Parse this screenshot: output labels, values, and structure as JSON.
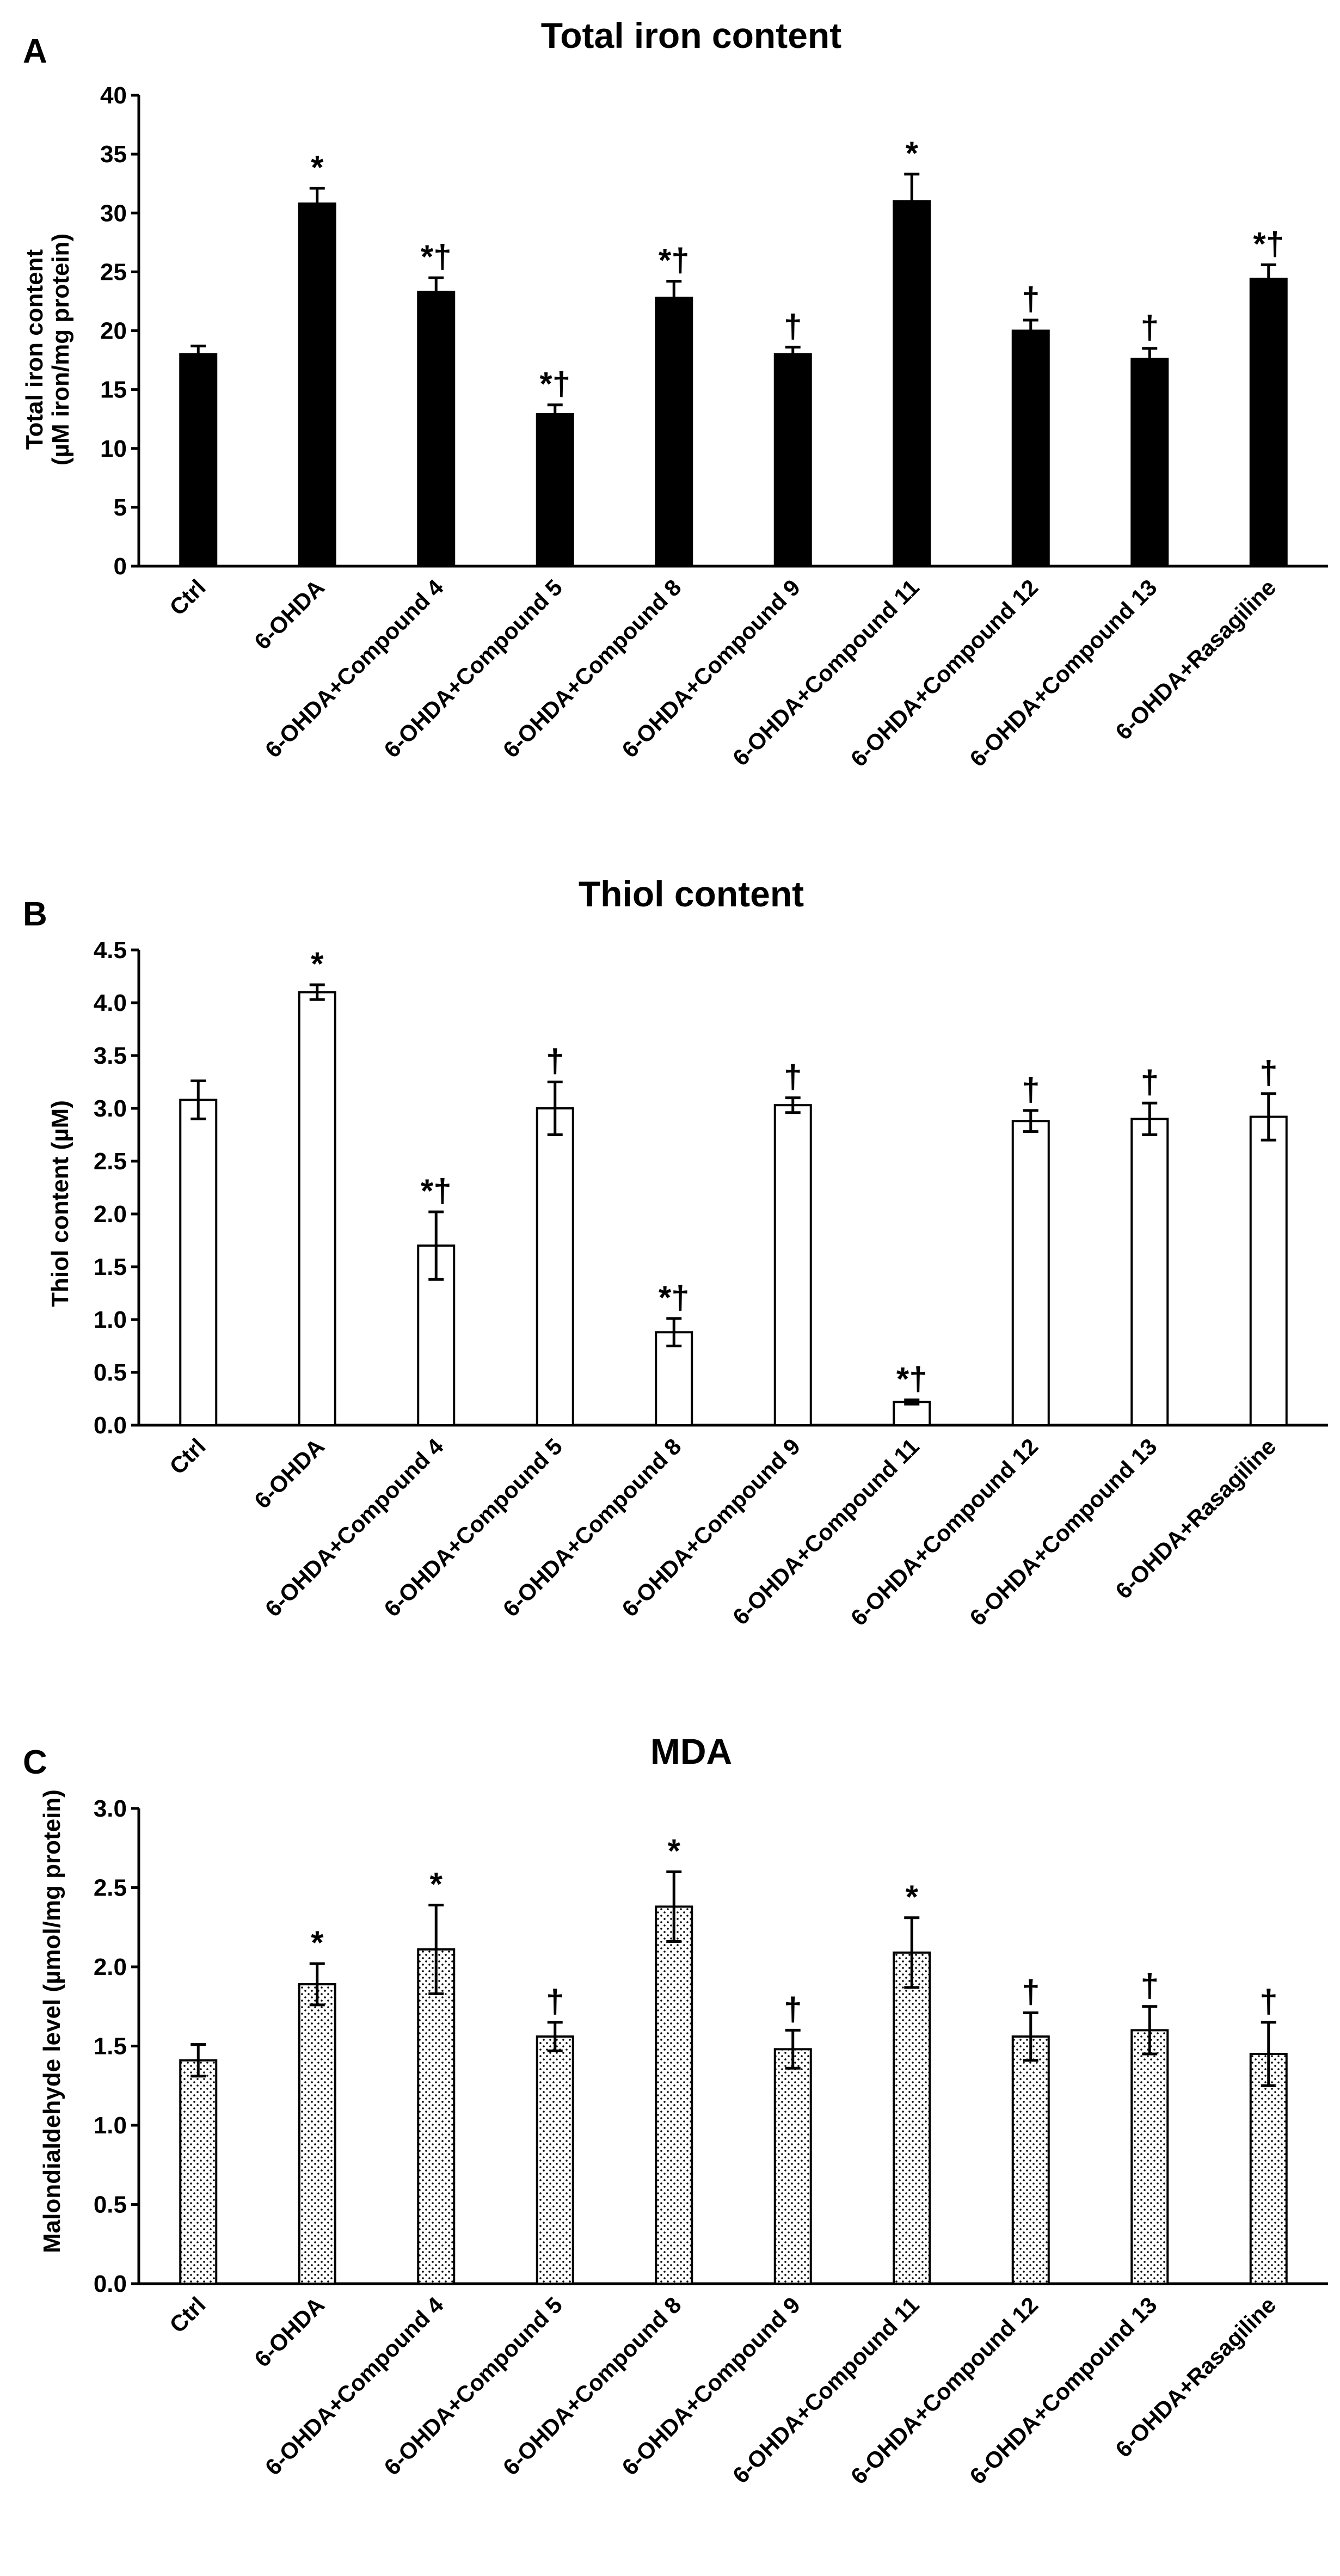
{
  "chart_data": [
    {
      "panel": "A",
      "type": "bar",
      "title": "Total iron content",
      "ylabel": "Total iron content (µM iron/mg protein)",
      "ylabel_lines": [
        "Total iron content",
        "(µM iron/mg protein)"
      ],
      "xlabel": "",
      "ylim": [
        0,
        40
      ],
      "yticks": [
        "0",
        "5",
        "10",
        "15",
        "20",
        "25",
        "30",
        "35",
        "40"
      ],
      "ytick_values": [
        0,
        5,
        10,
        15,
        20,
        25,
        30,
        35,
        40
      ],
      "fill": "solid",
      "fill_color": "#000000",
      "categories": [
        "Ctrl",
        "6-OHDA",
        "6-OHDA+Compound 4",
        "6-OHDA+Compound 5",
        "6-OHDA+Compound 8",
        "6-OHDA+Compound 9",
        "6-OHDA+Compound 11",
        "6-OHDA+Compound 12",
        "6-OHDA+Compound 13",
        "6-OHDA+Rasagiline"
      ],
      "values": [
        18.0,
        30.8,
        23.3,
        12.9,
        22.8,
        18.0,
        31.0,
        20.0,
        17.6,
        24.4
      ],
      "errors": [
        0.7,
        1.3,
        1.2,
        0.8,
        1.4,
        0.6,
        2.3,
        0.9,
        0.9,
        1.2
      ],
      "annotations": [
        "",
        "*",
        "*†",
        "*†",
        "*†",
        "†",
        "*",
        "†",
        "†",
        "*†"
      ]
    },
    {
      "panel": "B",
      "type": "bar",
      "title": "Thiol content",
      "ylabel": "Thiol content (µM)",
      "ylabel_lines": [
        "Thiol content (µM)"
      ],
      "xlabel": "",
      "ylim": [
        0,
        4.5
      ],
      "yticks": [
        "0.0",
        "0.5",
        "1.0",
        "1.5",
        "2.0",
        "2.5",
        "3.0",
        "3.5",
        "4.0",
        "4.5"
      ],
      "ytick_values": [
        0,
        0.5,
        1.0,
        1.5,
        2.0,
        2.5,
        3.0,
        3.5,
        4.0,
        4.5
      ],
      "fill": "white",
      "fill_color": "#ffffff",
      "categories": [
        "Ctrl",
        "6-OHDA",
        "6-OHDA+Compound 4",
        "6-OHDA+Compound 5",
        "6-OHDA+Compound 8",
        "6-OHDA+Compound 9",
        "6-OHDA+Compound 11",
        "6-OHDA+Compound 12",
        "6-OHDA+Compound 13",
        "6-OHDA+Rasagiline"
      ],
      "values": [
        3.08,
        4.1,
        1.7,
        3.0,
        0.88,
        3.03,
        0.22,
        2.88,
        2.9,
        2.92
      ],
      "errors": [
        0.18,
        0.07,
        0.32,
        0.25,
        0.13,
        0.07,
        0.02,
        0.1,
        0.15,
        0.22
      ],
      "annotations": [
        "",
        "*",
        "*†",
        "†",
        "*†",
        "†",
        "*†",
        "†",
        "†",
        "†"
      ]
    },
    {
      "panel": "C",
      "type": "bar",
      "title": "MDA",
      "ylabel": "Malondialdehyde level (µmol/mg protein)",
      "ylabel_lines": [
        "Malondialdehyde level (µmol/mg protein)"
      ],
      "xlabel": "",
      "ylim": [
        0,
        3.0
      ],
      "yticks": [
        "0.0",
        "0.5",
        "1.0",
        "1.5",
        "2.0",
        "2.5",
        "3.0"
      ],
      "ytick_values": [
        0,
        0.5,
        1.0,
        1.5,
        2.0,
        2.5,
        3.0
      ],
      "fill": "dotted",
      "fill_color": "#ffffff",
      "categories": [
        "Ctrl",
        "6-OHDA",
        "6-OHDA+Compound 4",
        "6-OHDA+Compound 5",
        "6-OHDA+Compound 8",
        "6-OHDA+Compound 9",
        "6-OHDA+Compound 11",
        "6-OHDA+Compound 12",
        "6-OHDA+Compound 13",
        "6-OHDA+Rasagiline"
      ],
      "values": [
        1.41,
        1.89,
        2.11,
        1.56,
        2.38,
        1.48,
        2.09,
        1.56,
        1.6,
        1.45
      ],
      "errors": [
        0.1,
        0.13,
        0.28,
        0.09,
        0.22,
        0.12,
        0.22,
        0.15,
        0.15,
        0.2
      ],
      "annotations": [
        "",
        "*",
        "*",
        "†",
        "*",
        "†",
        "*",
        "†",
        "†",
        "†"
      ]
    }
  ]
}
